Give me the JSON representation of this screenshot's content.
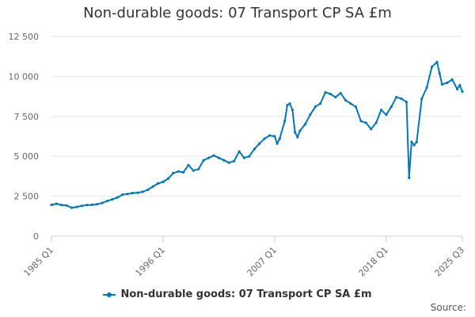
{
  "chart_data": {
    "type": "line",
    "title": "Non-durable goods: 07 Transport CP SA £m",
    "xlabel": "",
    "ylabel": "",
    "x_tick_labels": [
      "1985 Q1",
      "1996 Q1",
      "2007 Q1",
      "2018 Q1",
      "2025 Q3"
    ],
    "y_tick_labels": [
      "0",
      "2 500",
      "5 000",
      "7 500",
      "10 000",
      "12 500"
    ],
    "y_tick_values": [
      0,
      2500,
      5000,
      7500,
      10000,
      12500
    ],
    "ylim": [
      0,
      12500
    ],
    "xlim": [
      "1985 Q1",
      "2025 Q3"
    ],
    "grid": true,
    "legend_position": "bottom",
    "series": [
      {
        "name": "Non-durable goods: 07 Transport CP SA £m",
        "color": "#0077b6",
        "points": [
          [
            "1985 Q1",
            1960
          ],
          [
            "1985 Q3",
            2030
          ],
          [
            "1986 Q1",
            1950
          ],
          [
            "1986 Q3",
            1920
          ],
          [
            "1987 Q1",
            1780
          ],
          [
            "1987 Q3",
            1830
          ],
          [
            "1988 Q1",
            1900
          ],
          [
            "1988 Q3",
            1950
          ],
          [
            "1989 Q1",
            1960
          ],
          [
            "1989 Q3",
            2000
          ],
          [
            "1990 Q1",
            2080
          ],
          [
            "1990 Q3",
            2200
          ],
          [
            "1991 Q1",
            2300
          ],
          [
            "1991 Q3",
            2420
          ],
          [
            "1992 Q1",
            2600
          ],
          [
            "1992 Q3",
            2640
          ],
          [
            "1993 Q1",
            2700
          ],
          [
            "1993 Q3",
            2720
          ],
          [
            "1994 Q1",
            2780
          ],
          [
            "1994 Q3",
            2900
          ],
          [
            "1995 Q1",
            3100
          ],
          [
            "1995 Q3",
            3300
          ],
          [
            "1996 Q1",
            3400
          ],
          [
            "1996 Q3",
            3600
          ],
          [
            "1997 Q1",
            3950
          ],
          [
            "1997 Q3",
            4050
          ],
          [
            "1998 Q1",
            4000
          ],
          [
            "1998 Q3",
            4450
          ],
          [
            "1999 Q1",
            4100
          ],
          [
            "1999 Q3",
            4200
          ],
          [
            "2000 Q1",
            4750
          ],
          [
            "2000 Q3",
            4900
          ],
          [
            "2001 Q1",
            5050
          ],
          [
            "2001 Q3",
            4900
          ],
          [
            "2002 Q1",
            4750
          ],
          [
            "2002 Q3",
            4600
          ],
          [
            "2003 Q1",
            4700
          ],
          [
            "2003 Q3",
            5300
          ],
          [
            "2004 Q1",
            4900
          ],
          [
            "2004 Q3",
            5000
          ],
          [
            "2005 Q1",
            5450
          ],
          [
            "2005 Q3",
            5800
          ],
          [
            "2006 Q1",
            6100
          ],
          [
            "2006 Q3",
            6300
          ],
          [
            "2007 Q1",
            6250
          ],
          [
            "2007 Q2",
            5800
          ],
          [
            "2007 Q3",
            6100
          ],
          [
            "2008 Q1",
            7200
          ],
          [
            "2008 Q2",
            8200
          ],
          [
            "2008 Q3",
            8300
          ],
          [
            "2008 Q4",
            7900
          ],
          [
            "2009 Q1",
            6500
          ],
          [
            "2009 Q2",
            6200
          ],
          [
            "2009 Q3",
            6600
          ],
          [
            "2010 Q1",
            7000
          ],
          [
            "2010 Q3",
            7600
          ],
          [
            "2011 Q1",
            8100
          ],
          [
            "2011 Q3",
            8300
          ],
          [
            "2012 Q1",
            9000
          ],
          [
            "2012 Q3",
            8900
          ],
          [
            "2013 Q1",
            8700
          ],
          [
            "2013 Q3",
            8950
          ],
          [
            "2014 Q1",
            8500
          ],
          [
            "2014 Q3",
            8300
          ],
          [
            "2015 Q1",
            8100
          ],
          [
            "2015 Q3",
            7200
          ],
          [
            "2016 Q1",
            7100
          ],
          [
            "2016 Q3",
            6700
          ],
          [
            "2017 Q1",
            7100
          ],
          [
            "2017 Q3",
            7900
          ],
          [
            "2018 Q1",
            7600
          ],
          [
            "2018 Q3",
            8100
          ],
          [
            "2019 Q1",
            8700
          ],
          [
            "2019 Q3",
            8600
          ],
          [
            "2020 Q1",
            8400
          ],
          [
            "2020 Q2",
            3650
          ],
          [
            "2020 Q3",
            5900
          ],
          [
            "2020 Q4",
            5700
          ],
          [
            "2021 Q1",
            5900
          ],
          [
            "2021 Q3",
            8600
          ],
          [
            "2022 Q1",
            9300
          ],
          [
            "2022 Q3",
            10600
          ],
          [
            "2023 Q1",
            10900
          ],
          [
            "2023 Q2",
            10200
          ],
          [
            "2023 Q3",
            9500
          ],
          [
            "2024 Q1",
            9600
          ],
          [
            "2024 Q3",
            9800
          ],
          [
            "2025 Q1",
            9200
          ],
          [
            "2025 Q2",
            9450
          ],
          [
            "2025 Q3",
            9050
          ]
        ]
      }
    ]
  },
  "legend": {
    "label": "Non-durable goods: 07 Transport CP SA £m"
  },
  "source": {
    "label": "Source:"
  }
}
